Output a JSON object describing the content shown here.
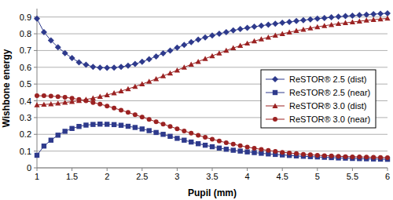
{
  "chart_data": {
    "type": "line",
    "x_label": "Pupil (mm)",
    "y_label": "Wishbone energy",
    "x": [
      1,
      1.1,
      1.2,
      1.3,
      1.4,
      1.5,
      1.6,
      1.7,
      1.8,
      1.9,
      2,
      2.1,
      2.2,
      2.3,
      2.4,
      2.5,
      2.6,
      2.7,
      2.8,
      2.9,
      3,
      3.1,
      3.2,
      3.3,
      3.4,
      3.5,
      3.6,
      3.7,
      3.8,
      3.9,
      4,
      4.1,
      4.2,
      4.3,
      4.4,
      4.5,
      4.6,
      4.7,
      4.8,
      4.9,
      5,
      5.1,
      5.2,
      5.3,
      5.4,
      5.5,
      5.6,
      5.7,
      5.8,
      5.9,
      6
    ],
    "xlim": [
      1,
      6
    ],
    "xticks": [
      1,
      1.5,
      2,
      2.5,
      3,
      3.5,
      4,
      4.5,
      5,
      5.5,
      6
    ],
    "ylim": [
      0,
      0.95
    ],
    "yticks": [
      0,
      0.1,
      0.2,
      0.3,
      0.4,
      0.5,
      0.6,
      0.7,
      0.8,
      0.9
    ],
    "grid": true,
    "legend": "right",
    "series": [
      {
        "name": "ReSTOR® 2.5 (dist)",
        "color": "#2e3a8c",
        "marker": "diamond",
        "values": [
          0.89,
          0.81,
          0.76,
          0.72,
          0.685,
          0.655,
          0.63,
          0.615,
          0.603,
          0.598,
          0.597,
          0.598,
          0.602,
          0.61,
          0.62,
          0.633,
          0.648,
          0.665,
          0.683,
          0.7,
          0.717,
          0.733,
          0.75,
          0.765,
          0.778,
          0.79,
          0.8,
          0.81,
          0.82,
          0.828,
          0.835,
          0.842,
          0.848,
          0.854,
          0.86,
          0.866,
          0.871,
          0.876,
          0.881,
          0.886,
          0.89,
          0.894,
          0.898,
          0.902,
          0.905,
          0.908,
          0.911,
          0.914,
          0.917,
          0.92,
          0.922
        ]
      },
      {
        "name": "ReSTOR® 2.5 (near)",
        "color": "#2e3a8c",
        "marker": "square",
        "values": [
          0.075,
          0.13,
          0.165,
          0.195,
          0.218,
          0.235,
          0.247,
          0.255,
          0.259,
          0.261,
          0.26,
          0.258,
          0.254,
          0.248,
          0.241,
          0.232,
          0.222,
          0.211,
          0.2,
          0.188,
          0.176,
          0.165,
          0.154,
          0.144,
          0.135,
          0.126,
          0.118,
          0.111,
          0.105,
          0.1,
          0.095,
          0.091,
          0.087,
          0.083,
          0.08,
          0.077,
          0.074,
          0.071,
          0.069,
          0.067,
          0.065,
          0.063,
          0.061,
          0.059,
          0.058,
          0.056,
          0.055,
          0.054,
          0.053,
          0.052,
          0.051
        ]
      },
      {
        "name": "ReSTOR® 3.0 (dist)",
        "color": "#9b2222",
        "marker": "triangle",
        "values": [
          0.375,
          0.378,
          0.381,
          0.385,
          0.39,
          0.395,
          0.401,
          0.408,
          0.416,
          0.425,
          0.435,
          0.446,
          0.458,
          0.471,
          0.485,
          0.5,
          0.515,
          0.531,
          0.548,
          0.565,
          0.582,
          0.6,
          0.617,
          0.634,
          0.651,
          0.668,
          0.684,
          0.7,
          0.715,
          0.729,
          0.743,
          0.756,
          0.768,
          0.779,
          0.79,
          0.8,
          0.809,
          0.818,
          0.826,
          0.834,
          0.841,
          0.848,
          0.854,
          0.86,
          0.865,
          0.87,
          0.875,
          0.88,
          0.884,
          0.888,
          0.892
        ]
      },
      {
        "name": "ReSTOR® 3.0 (near)",
        "color": "#9b2222",
        "marker": "circle",
        "values": [
          0.43,
          0.43,
          0.428,
          0.425,
          0.421,
          0.415,
          0.408,
          0.4,
          0.39,
          0.38,
          0.369,
          0.357,
          0.344,
          0.331,
          0.317,
          0.303,
          0.289,
          0.275,
          0.261,
          0.247,
          0.233,
          0.22,
          0.207,
          0.194,
          0.182,
          0.171,
          0.16,
          0.15,
          0.141,
          0.132,
          0.124,
          0.117,
          0.11,
          0.104,
          0.098,
          0.093,
          0.089,
          0.085,
          0.081,
          0.078,
          0.075,
          0.073,
          0.071,
          0.069,
          0.067,
          0.066,
          0.065,
          0.064,
          0.063,
          0.062,
          0.061
        ]
      }
    ]
  }
}
